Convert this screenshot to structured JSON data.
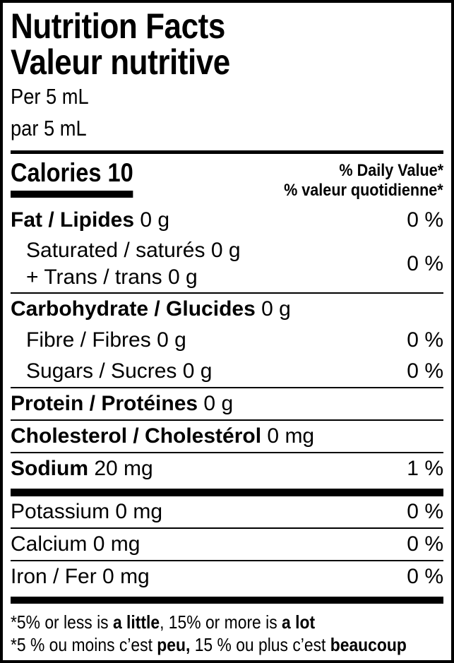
{
  "label": {
    "colors": {
      "text": "#000000",
      "background": "#ffffff"
    },
    "title_en": "Nutrition Facts",
    "title_fr": "Valeur nutritive",
    "serving_en": "Per 5 mL",
    "serving_fr": "par 5 mL",
    "calories_label": "Calories",
    "calories_value": "10",
    "daily_value_en": "% Daily Value*",
    "daily_value_fr": "% valeur quotidienne*",
    "rows": {
      "fat": {
        "name": "Fat / Lipides",
        "amount": "0 g",
        "dv": "0 %"
      },
      "saturated_trans": {
        "line1_name": "Saturated / saturés",
        "line1_amount": "0 g",
        "line2_name": "+ Trans / trans",
        "line2_amount": "0 g",
        "dv": "0 %"
      },
      "carbohydrate": {
        "name": "Carbohydrate / Glucides",
        "amount": "0 g"
      },
      "fibre": {
        "name": "Fibre / Fibres",
        "amount": "0 g",
        "dv": "0 %"
      },
      "sugars": {
        "name": "Sugars / Sucres",
        "amount": "0 g",
        "dv": "0 %"
      },
      "protein": {
        "name": "Protein / Protéines",
        "amount": "0 g"
      },
      "cholesterol": {
        "name": "Cholesterol / Cholestérol",
        "amount": "0 mg"
      },
      "sodium": {
        "name": "Sodium",
        "amount": "20 mg",
        "dv": "1 %"
      },
      "potassium": {
        "name": "Potassium",
        "amount": "0 mg",
        "dv": "0 %"
      },
      "calcium": {
        "name": "Calcium",
        "amount": "0 mg",
        "dv": "0 %"
      },
      "iron": {
        "name": "Iron / Fer",
        "amount": "0 mg",
        "dv": "0 %"
      }
    },
    "footnote": {
      "en_pre": "*5% or less is ",
      "en_bold1": "a little",
      "en_mid": ", 15% or more is ",
      "en_bold2": "a lot",
      "fr_pre": "*5 % ou moins c’est ",
      "fr_bold1": "peu,",
      "fr_mid": " 15 % ou plus c’est ",
      "fr_bold2": "beaucoup"
    }
  }
}
